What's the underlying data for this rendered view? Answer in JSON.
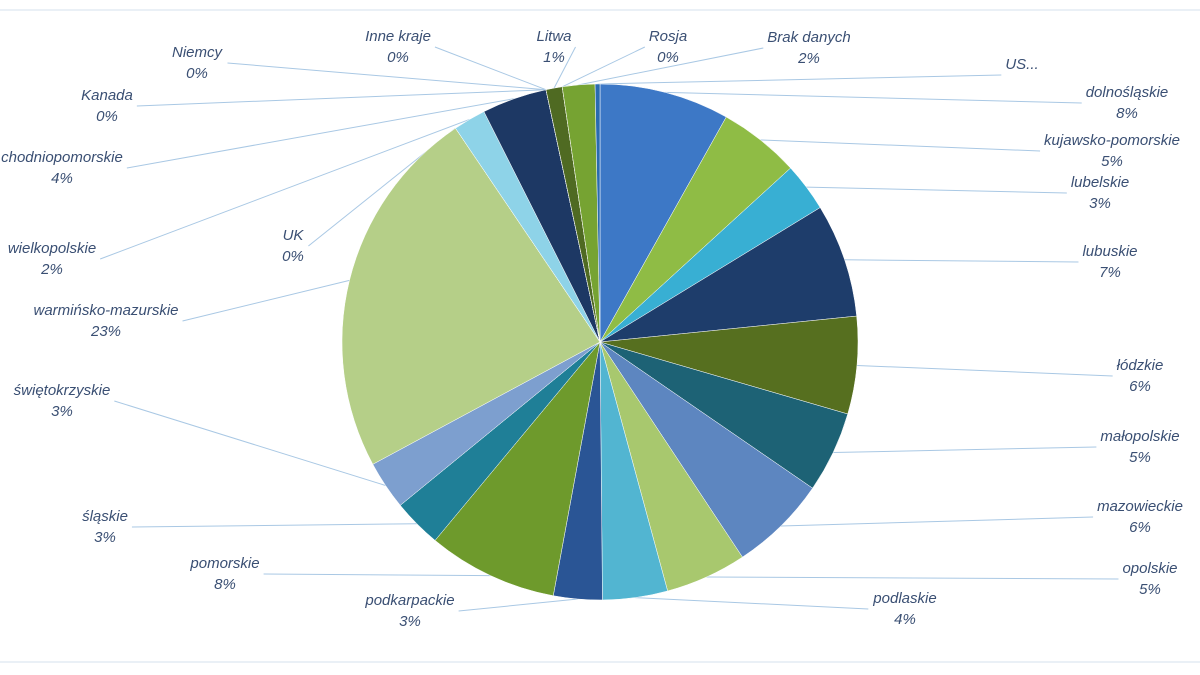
{
  "chart_data": {
    "type": "pie",
    "categories": [
      "dolnośląskie",
      "kujawsko-pomorskie",
      "lubelskie",
      "lubuskie",
      "łódzkie",
      "małopolskie",
      "mazowieckie",
      "opolskie",
      "podlaskie",
      "podkarpackie",
      "pomorskie",
      "śląskie",
      "świętokrzyskie",
      "warmińsko-mazurskie",
      "UK",
      "wielkopolskie",
      "chodniopomorskie",
      "Kanada",
      "Niemcy",
      "Inne kraje",
      "Litwa",
      "Rosja",
      "Brak danych",
      "US..."
    ],
    "values": [
      8,
      5,
      3,
      7,
      6,
      5,
      6,
      5,
      4,
      3,
      8,
      3,
      3,
      23,
      0,
      2,
      4,
      0,
      0,
      0,
      1,
      0,
      2,
      0.3
    ],
    "value_labels": [
      "8%",
      "5%",
      "3%",
      "7%",
      "6%",
      "5%",
      "6%",
      "5%",
      "4%",
      "3%",
      "8%",
      "3%",
      "3%",
      "23%",
      "0%",
      "2%",
      "4%",
      "0%",
      "0%",
      "0%",
      "1%",
      "0%",
      "2%",
      null
    ],
    "colors": [
      "#3d78c6",
      "#8fbc45",
      "#38afd3",
      "#1e3d6b",
      "#566f1f",
      "#1d6275",
      "#5d86c0",
      "#a8c86e",
      "#52b5d1",
      "#2a5595",
      "#6e9a2c",
      "#1f7f97",
      "#7d9fcf",
      "#b5cf88",
      "#9ab6db",
      "#8ed3e8",
      "#1d3864",
      "#3e5d9a",
      "#5c7d2c",
      "#4a7fc0",
      "#4f6a22",
      "#1f5fa0",
      "#76a332",
      "#2a6bb0"
    ]
  }
}
